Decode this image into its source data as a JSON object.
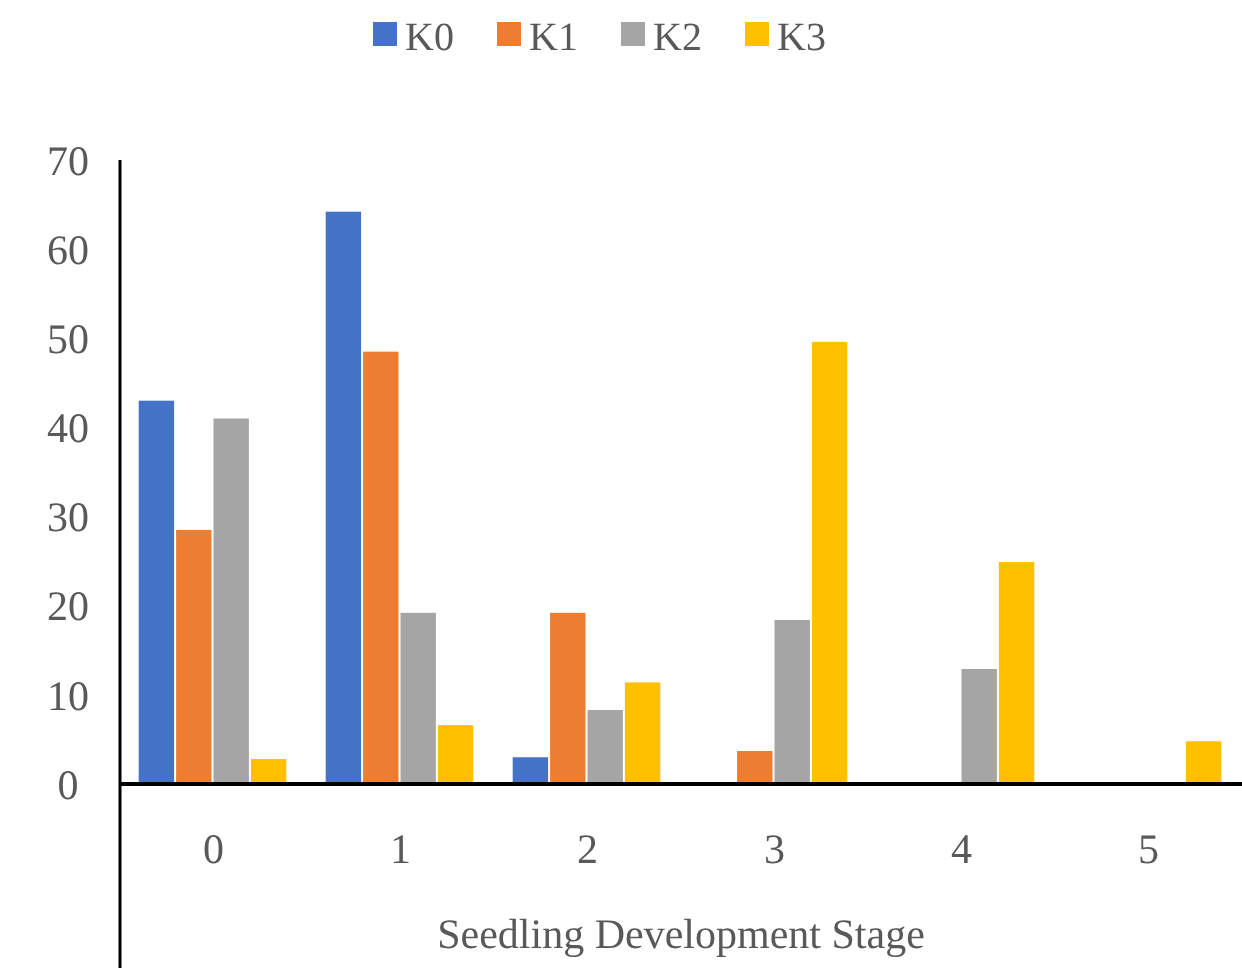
{
  "chart_data": {
    "type": "bar",
    "xlabel": "Seedling Development Stage",
    "categories": [
      "0",
      "1",
      "2",
      "3",
      "4",
      "5"
    ],
    "series": [
      {
        "name": "K0",
        "color": "#4472c4",
        "values": [
          43,
          64.2,
          3,
          0,
          0,
          0
        ]
      },
      {
        "name": "K1",
        "color": "#ed7d31",
        "values": [
          28.5,
          48.5,
          19.2,
          3.7,
          0,
          0
        ]
      },
      {
        "name": "K2",
        "color": "#a5a5a5",
        "values": [
          41,
          19.2,
          8.3,
          18.4,
          12.9,
          0
        ]
      },
      {
        "name": "K3",
        "color": "#ffc000",
        "values": [
          2.8,
          6.6,
          11.4,
          49.6,
          24.9,
          4.8
        ]
      }
    ],
    "ylim": [
      0,
      70
    ],
    "yticks": [
      0,
      10,
      20,
      30,
      40,
      50,
      60,
      70
    ],
    "legend": "top",
    "grid": false
  }
}
